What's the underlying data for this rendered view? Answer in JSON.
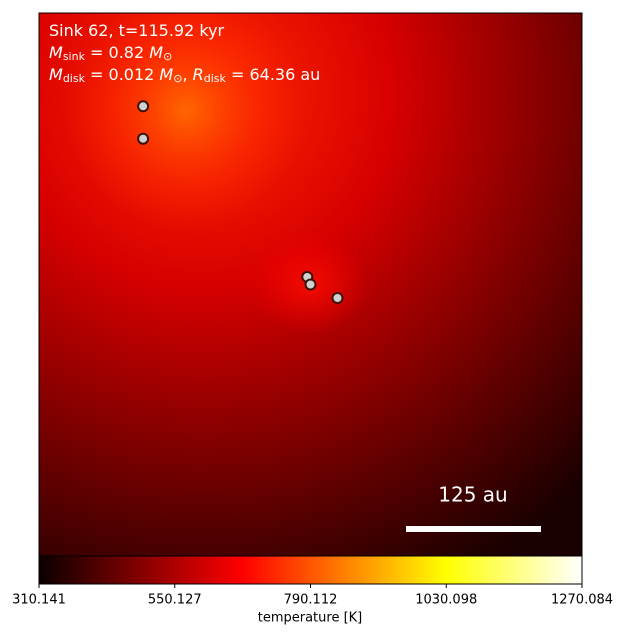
{
  "chart_data": {
    "type": "image",
    "info": [
      [
        {
          "text": "Sink 62, t=115.92 kyr",
          "style": "plain"
        }
      ],
      [
        {
          "text": "M",
          "style": "italic"
        },
        {
          "text": "sink",
          "style": "sub"
        },
        {
          "text": " = 0.82 ",
          "style": "plain"
        },
        {
          "text": "M",
          "style": "italic"
        },
        {
          "text": "⊙",
          "style": "sub"
        }
      ],
      [
        {
          "text": "M",
          "style": "italic"
        },
        {
          "text": "disk",
          "style": "sub"
        },
        {
          "text": " = 0.012 ",
          "style": "plain"
        },
        {
          "text": "M",
          "style": "italic"
        },
        {
          "text": "⊙",
          "style": "sub"
        },
        {
          "text": ", ",
          "style": "plain"
        },
        {
          "text": "R",
          "style": "italic"
        },
        {
          "text": "disk",
          "style": "sub"
        },
        {
          "text": " = 64.36 au",
          "style": "plain"
        }
      ]
    ],
    "scale_bar": {
      "label": "125 au",
      "length": 125
    },
    "xlim": [
      -251.4,
      251.4
    ],
    "ylim": [
      -251.4,
      251.4
    ],
    "sinks": {
      "x": [
        -155,
        -155,
        -3,
        0,
        25
      ],
      "y": [
        165,
        135,
        7,
        0,
        -12.5
      ]
    },
    "sink_color": "#d0d0d0",
    "clim": [
      310.141,
      1270.084
    ],
    "cticks": [
      310.141,
      550.127,
      790.112,
      1030.098,
      1270.084
    ],
    "colorbar_label": "temperature [K]",
    "colormap": "hot"
  }
}
